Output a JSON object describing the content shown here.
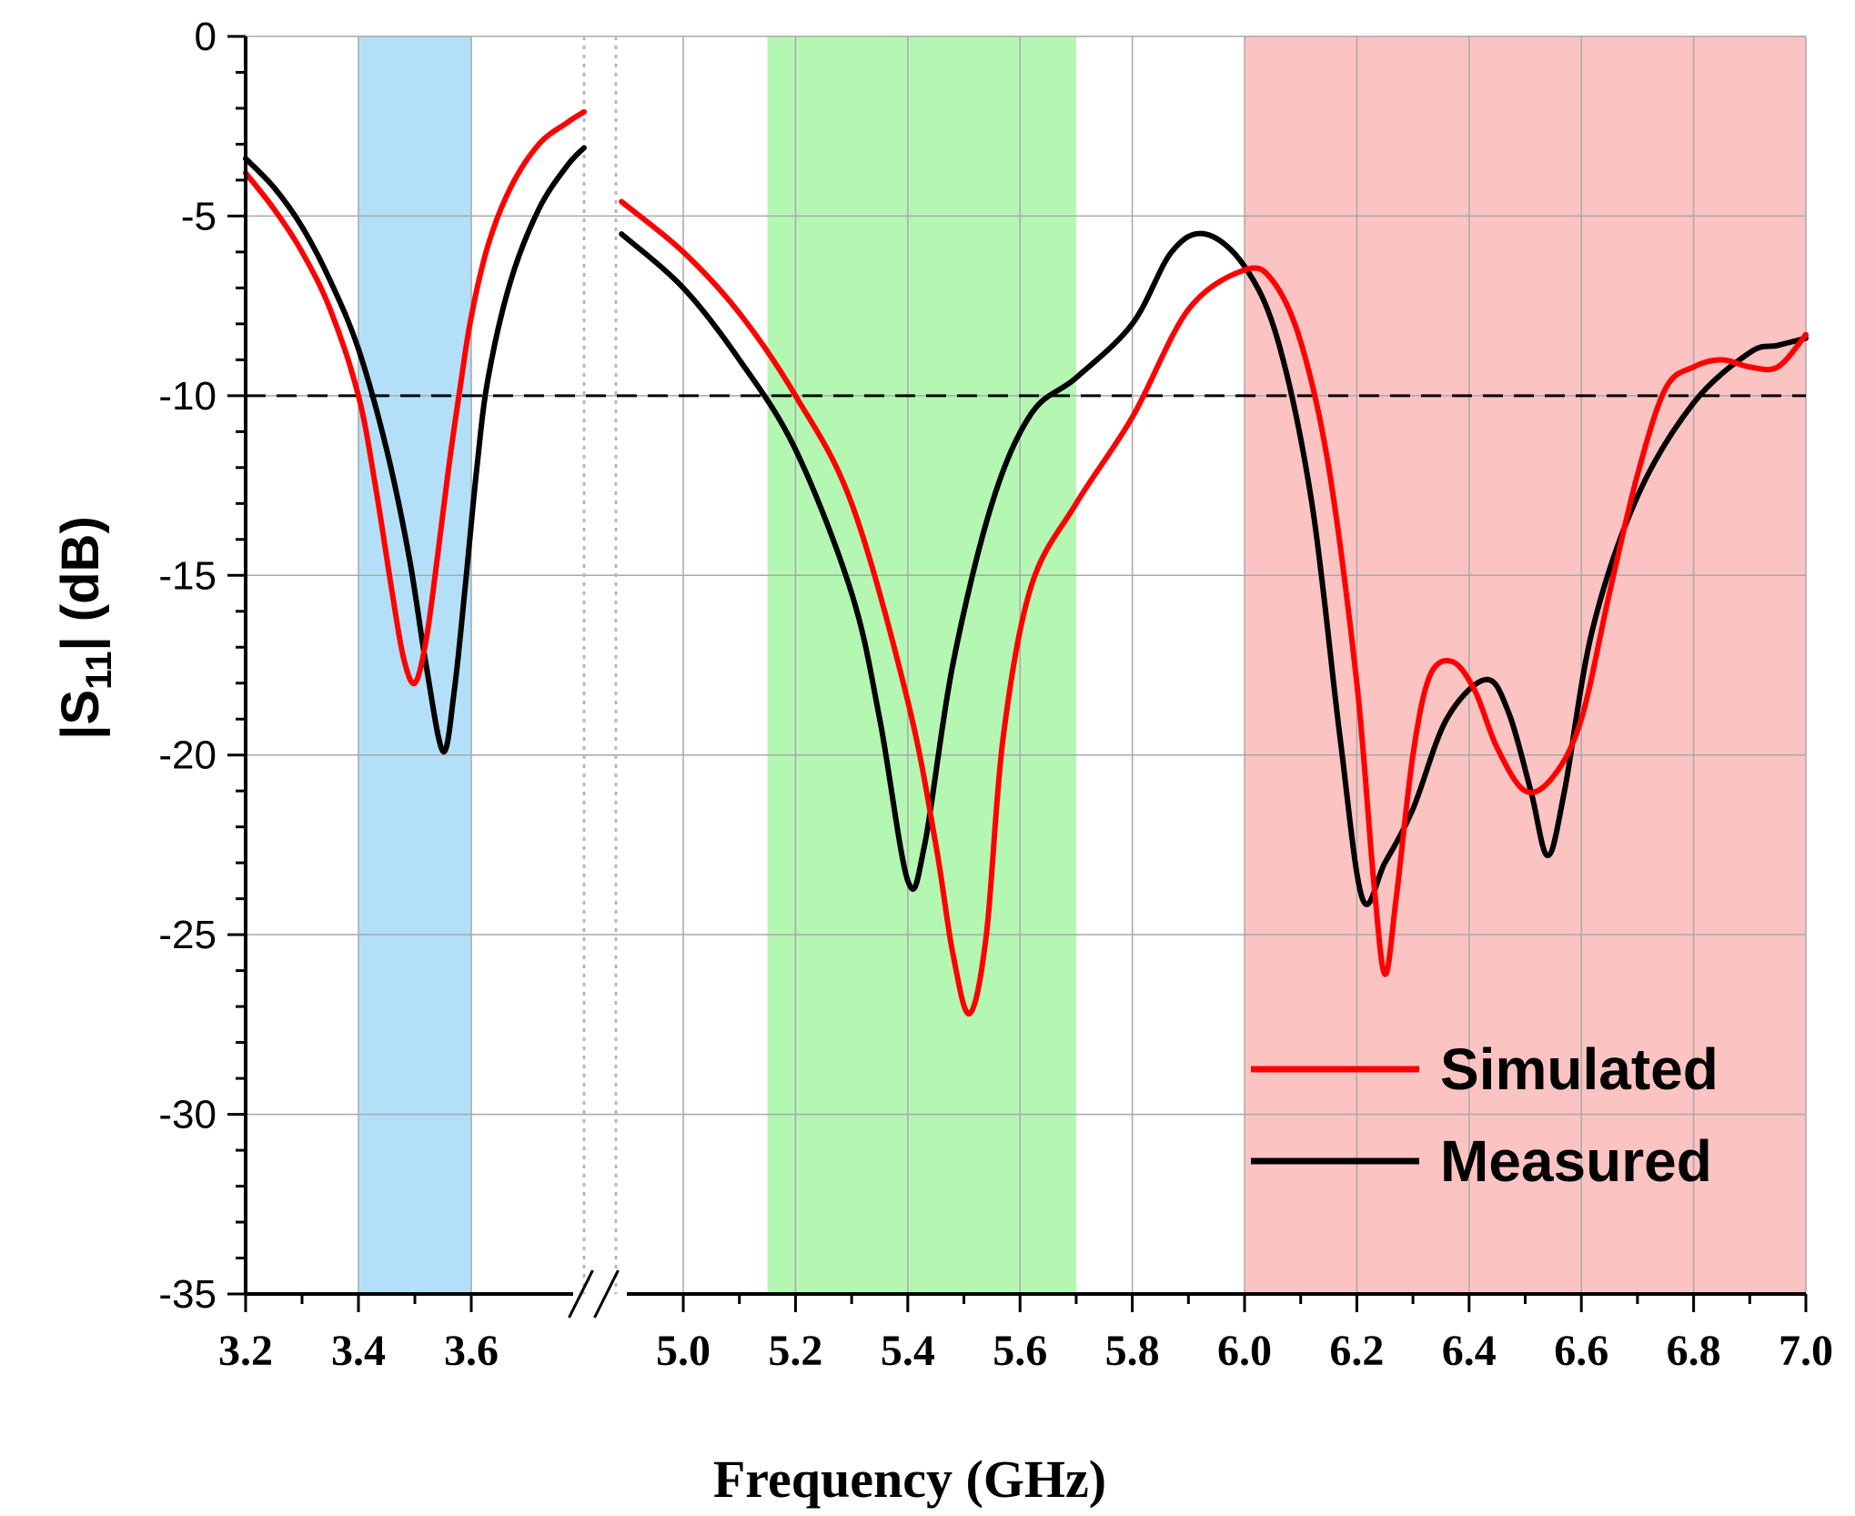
{
  "chart_data": {
    "type": "line",
    "xlabel": "Frequency (GHz)",
    "ylabel_main": "|S",
    "ylabel_sub": "11",
    "ylabel_tail": "| (dB)",
    "ylim": [
      -35,
      0
    ],
    "yticks": [
      0,
      -5,
      -10,
      -15,
      -20,
      -25,
      -30,
      -35
    ],
    "ytick_labels": [
      "0",
      "-5",
      "-10",
      "-15",
      "-20",
      "-25",
      "-30",
      "-35"
    ],
    "x_segments": [
      {
        "range": [
          3.2,
          3.8
        ],
        "ticks": [
          3.2,
          3.4,
          3.6
        ],
        "tick_labels": [
          "3.2",
          "3.4",
          "3.6"
        ]
      },
      {
        "range": [
          4.88,
          7.0
        ],
        "ticks": [
          5.0,
          5.2,
          5.4,
          5.6,
          5.8,
          6.0,
          6.2,
          6.4,
          6.6,
          6.8,
          7.0
        ],
        "tick_labels": [
          "5.0",
          "5.2",
          "5.4",
          "5.6",
          "5.8",
          "6.0",
          "6.2",
          "6.4",
          "6.6",
          "6.8",
          "7.0"
        ]
      }
    ],
    "axis_break": "//",
    "reference_line": {
      "y": -10,
      "style": "dashed",
      "color": "#000000"
    },
    "bands": [
      {
        "x0": 3.4,
        "x1": 3.6,
        "color": "#b3e0f8"
      },
      {
        "x0": 5.15,
        "x1": 5.7,
        "color": "#b3f7b3"
      },
      {
        "x0": 6.0,
        "x1": 7.0,
        "color": "#fcc3c3"
      }
    ],
    "series": [
      {
        "name": "Simulated",
        "color": "#ff0000",
        "points": [
          [
            3.2,
            -3.8
          ],
          [
            3.25,
            -4.8
          ],
          [
            3.3,
            -6.0
          ],
          [
            3.35,
            -7.6
          ],
          [
            3.4,
            -10.0
          ],
          [
            3.43,
            -12.5
          ],
          [
            3.46,
            -15.5
          ],
          [
            3.48,
            -17.3
          ],
          [
            3.5,
            -18.0
          ],
          [
            3.52,
            -16.8
          ],
          [
            3.54,
            -14.5
          ],
          [
            3.56,
            -12.0
          ],
          [
            3.58,
            -9.8
          ],
          [
            3.6,
            -7.8
          ],
          [
            3.63,
            -5.8
          ],
          [
            3.67,
            -4.2
          ],
          [
            3.72,
            -3.0
          ],
          [
            3.77,
            -2.4
          ],
          [
            3.8,
            -2.1
          ],
          [
            4.89,
            -4.6
          ],
          [
            5.0,
            -6.0
          ],
          [
            5.1,
            -7.7
          ],
          [
            5.2,
            -10.0
          ],
          [
            5.3,
            -13.0
          ],
          [
            5.4,
            -18.5
          ],
          [
            5.45,
            -22.5
          ],
          [
            5.48,
            -25.5
          ],
          [
            5.51,
            -27.2
          ],
          [
            5.54,
            -25.0
          ],
          [
            5.57,
            -19.5
          ],
          [
            5.62,
            -15.3
          ],
          [
            5.7,
            -13.0
          ],
          [
            5.8,
            -10.6
          ],
          [
            5.9,
            -7.6
          ],
          [
            6.0,
            -6.5
          ],
          [
            6.05,
            -6.8
          ],
          [
            6.1,
            -8.5
          ],
          [
            6.15,
            -12.0
          ],
          [
            6.2,
            -18.0
          ],
          [
            6.23,
            -23.5
          ],
          [
            6.25,
            -26.1
          ],
          [
            6.27,
            -24.0
          ],
          [
            6.3,
            -20.0
          ],
          [
            6.33,
            -17.8
          ],
          [
            6.37,
            -17.4
          ],
          [
            6.41,
            -18.2
          ],
          [
            6.45,
            -19.8
          ],
          [
            6.5,
            -21.0
          ],
          [
            6.55,
            -20.6
          ],
          [
            6.6,
            -19.0
          ],
          [
            6.65,
            -15.5
          ],
          [
            6.7,
            -12.2
          ],
          [
            6.75,
            -9.8
          ],
          [
            6.8,
            -9.2
          ],
          [
            6.85,
            -9.0
          ],
          [
            6.9,
            -9.2
          ],
          [
            6.95,
            -9.2
          ],
          [
            7.0,
            -8.3
          ]
        ]
      },
      {
        "name": "Measured",
        "color": "#000000",
        "points": [
          [
            3.2,
            -3.4
          ],
          [
            3.25,
            -4.2
          ],
          [
            3.3,
            -5.3
          ],
          [
            3.35,
            -6.8
          ],
          [
            3.4,
            -8.7
          ],
          [
            3.45,
            -11.5
          ],
          [
            3.49,
            -14.5
          ],
          [
            3.52,
            -17.5
          ],
          [
            3.55,
            -19.9
          ],
          [
            3.57,
            -18.2
          ],
          [
            3.59,
            -15.2
          ],
          [
            3.61,
            -12.0
          ],
          [
            3.63,
            -9.5
          ],
          [
            3.67,
            -6.8
          ],
          [
            3.72,
            -4.8
          ],
          [
            3.77,
            -3.6
          ],
          [
            3.8,
            -3.1
          ],
          [
            4.89,
            -5.5
          ],
          [
            5.0,
            -7.0
          ],
          [
            5.1,
            -9.0
          ],
          [
            5.2,
            -11.5
          ],
          [
            5.3,
            -15.5
          ],
          [
            5.35,
            -19.0
          ],
          [
            5.4,
            -23.5
          ],
          [
            5.43,
            -22.5
          ],
          [
            5.48,
            -17.5
          ],
          [
            5.55,
            -13.0
          ],
          [
            5.62,
            -10.5
          ],
          [
            5.7,
            -9.5
          ],
          [
            5.8,
            -8.0
          ],
          [
            5.87,
            -6.0
          ],
          [
            5.93,
            -5.5
          ],
          [
            6.0,
            -6.4
          ],
          [
            6.06,
            -8.5
          ],
          [
            6.12,
            -13.0
          ],
          [
            6.17,
            -19.5
          ],
          [
            6.21,
            -24.0
          ],
          [
            6.25,
            -23.0
          ],
          [
            6.3,
            -21.5
          ],
          [
            6.36,
            -19.0
          ],
          [
            6.43,
            -17.9
          ],
          [
            6.47,
            -18.8
          ],
          [
            6.51,
            -21.0
          ],
          [
            6.54,
            -22.8
          ],
          [
            6.57,
            -21.0
          ],
          [
            6.62,
            -16.5
          ],
          [
            6.7,
            -12.8
          ],
          [
            6.8,
            -10.2
          ],
          [
            6.9,
            -8.8
          ],
          [
            6.95,
            -8.6
          ],
          [
            7.0,
            -8.4
          ]
        ]
      }
    ]
  }
}
